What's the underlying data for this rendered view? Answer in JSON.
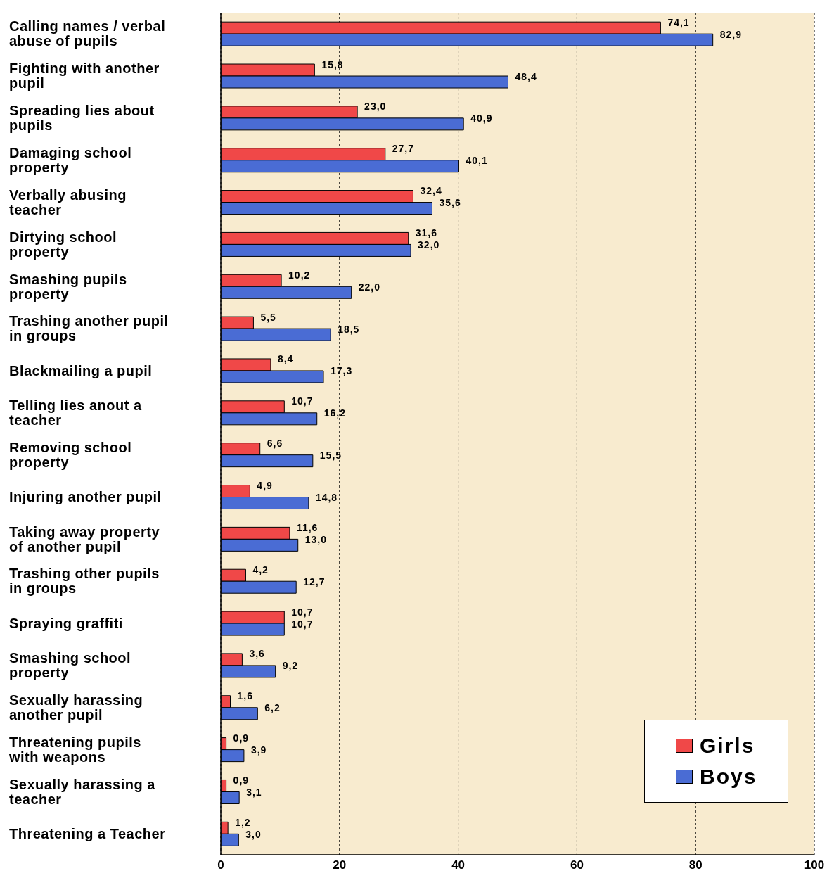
{
  "chart_data": {
    "type": "bar",
    "orientation": "horizontal",
    "categories": [
      "Calling names / verbal abuse of pupils",
      "Fighting with another pupil",
      "Spreading lies about pupils",
      "Damaging school property",
      "Verbally abusing teacher",
      "Dirtying school property",
      "Smashing pupils property",
      "Trashing another pupil in groups",
      "Blackmailing a pupil",
      "Telling lies anout a teacher",
      "Removing school property",
      "Injuring another pupil",
      "Taking away property of another pupil",
      "Trashing other pupils in groups",
      "Spraying graffiti",
      "Smashing school property",
      "Sexually harassing another pupil",
      "Threatening pupils with weapons",
      "Sexually harassing a teacher",
      "Threatening a Teacher"
    ],
    "series": [
      {
        "name": "Girls",
        "color": "#f04848",
        "values": [
          74.1,
          15.8,
          23.0,
          27.7,
          32.4,
          31.6,
          10.2,
          5.5,
          8.4,
          10.7,
          6.6,
          4.9,
          11.6,
          4.2,
          10.7,
          3.6,
          1.6,
          0.9,
          0.9,
          1.2
        ],
        "value_labels": [
          "74,1",
          "15,8",
          "23,0",
          "27,7",
          "32,4",
          "31,6",
          "10,2",
          "5,5",
          "8,4",
          "10,7",
          "6,6",
          "4,9",
          "11,6",
          "4,2",
          "10,7",
          "3,6",
          "1,6",
          "0,9",
          "0,9",
          "1,2"
        ]
      },
      {
        "name": "Boys",
        "color": "#4a6cd4",
        "values": [
          82.9,
          48.4,
          40.9,
          40.1,
          35.6,
          32.0,
          22.0,
          18.5,
          17.3,
          16.2,
          15.5,
          14.8,
          13.0,
          12.7,
          10.7,
          9.2,
          6.2,
          3.9,
          3.1,
          3.0
        ],
        "value_labels": [
          "82,9",
          "48,4",
          "40,9",
          "40,1",
          "35,6",
          "32,0",
          "22,0",
          "18,5",
          "17,3",
          "16,2",
          "15,5",
          "14,8",
          "13,0",
          "12,7",
          "10,7",
          "9,2",
          "6,2",
          "3,9",
          "3,1",
          "3,0"
        ]
      }
    ],
    "xlim": [
      0,
      100
    ],
    "xticks": [
      0,
      20,
      40,
      60,
      80,
      100
    ],
    "grid": "x",
    "legend": "bottom right"
  }
}
